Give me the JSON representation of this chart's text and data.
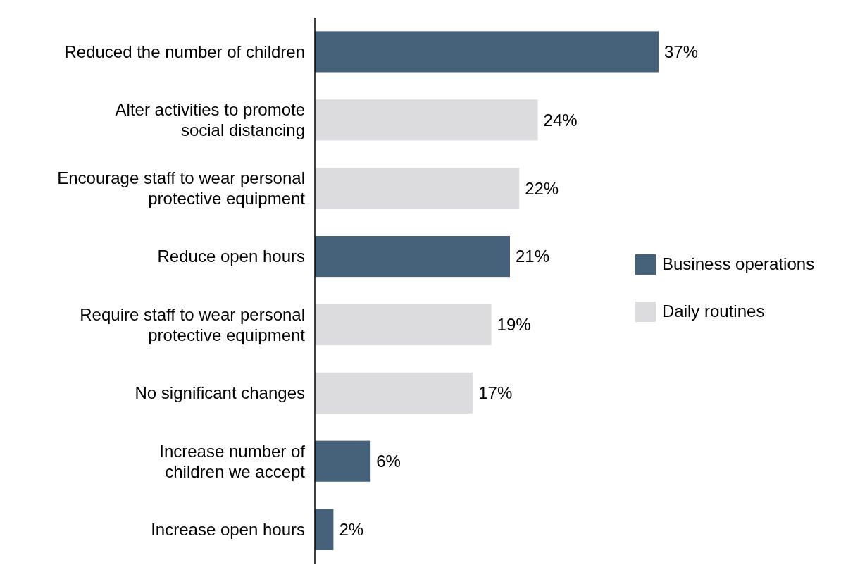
{
  "chart_data": {
    "type": "bar",
    "orientation": "horizontal",
    "legend": "right",
    "categories": [
      "Reduced the number of children",
      "Alter activities to promote\nsocial distancing",
      "Encourage staff to wear personal\nprotective equipment",
      "Reduce open hours",
      "Require staff to wear personal\nprotective equipment",
      "No significant changes",
      "Increase number of\nchildren we accept",
      "Increase open hours"
    ],
    "series": [
      {
        "name": "Business operations",
        "color": "#46627a",
        "values": [
          37,
          null,
          null,
          21,
          null,
          null,
          6,
          2
        ],
        "value_labels": [
          "37%",
          null,
          null,
          "21%",
          null,
          null,
          "6%",
          "2%"
        ]
      },
      {
        "name": "Daily routines",
        "color": "#dcdcde",
        "values": [
          null,
          24,
          22,
          null,
          19,
          17,
          null,
          null
        ],
        "value_labels": [
          null,
          "24%",
          "22%",
          null,
          "19%",
          "17%",
          null,
          null
        ]
      }
    ]
  }
}
